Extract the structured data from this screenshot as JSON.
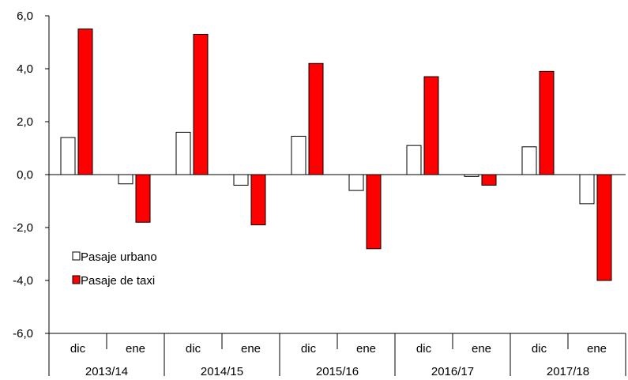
{
  "chart_data": {
    "type": "bar",
    "groups": [
      "2013/14",
      "2014/15",
      "2015/16",
      "2016/17",
      "2017/18"
    ],
    "months": [
      "dic",
      "ene"
    ],
    "categories": [
      "dic",
      "ene",
      "dic",
      "ene",
      "dic",
      "ene",
      "dic",
      "ene",
      "dic",
      "ene"
    ],
    "series": [
      {
        "name": "Pasaje urbano",
        "color": "#ffffff",
        "stroke": "#000000",
        "values": [
          1.4,
          -0.35,
          1.6,
          -0.4,
          1.45,
          -0.6,
          1.1,
          -0.07,
          1.05,
          -1.1
        ]
      },
      {
        "name": "Pasaje de taxi",
        "color": "#ff0000",
        "stroke": "#000000",
        "values": [
          5.5,
          -1.8,
          5.3,
          -1.9,
          4.2,
          -2.8,
          3.7,
          -0.4,
          3.9,
          -4.0
        ]
      }
    ],
    "ylim": [
      -6,
      6
    ],
    "yticks": [
      "6,0",
      "4,0",
      "2,0",
      "0,0",
      "-2,0",
      "-4,0",
      "-6,0"
    ],
    "legend_position": "left",
    "grid": false
  }
}
